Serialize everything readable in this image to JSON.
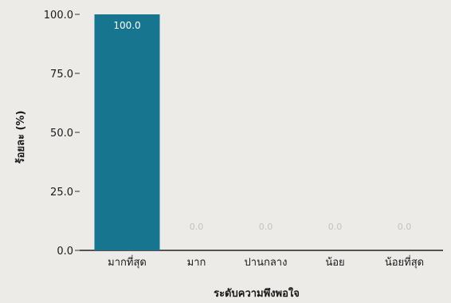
{
  "chart_data": {
    "type": "bar",
    "title": "",
    "xlabel": "ระดับความพึงพอใจ",
    "ylabel": "ร้อยละ (%)",
    "categories": [
      "มากที่สุด",
      "มาก",
      "ปานกลาง",
      "น้อย",
      "น้อยที่สุด"
    ],
    "values": [
      100.0,
      0.0,
      0.0,
      0.0,
      0.0
    ],
    "data_labels": [
      "100.0",
      "0.0",
      "0.0",
      "0.0",
      "0.0"
    ],
    "yticks": [
      0,
      25,
      50,
      75,
      100
    ],
    "ytick_labels": [
      "0.0",
      "25.0",
      "50.0",
      "75.0",
      "100.0"
    ],
    "ylim": [
      0,
      100
    ],
    "grid": false,
    "legend": "none",
    "bar_color": "#17758f"
  }
}
